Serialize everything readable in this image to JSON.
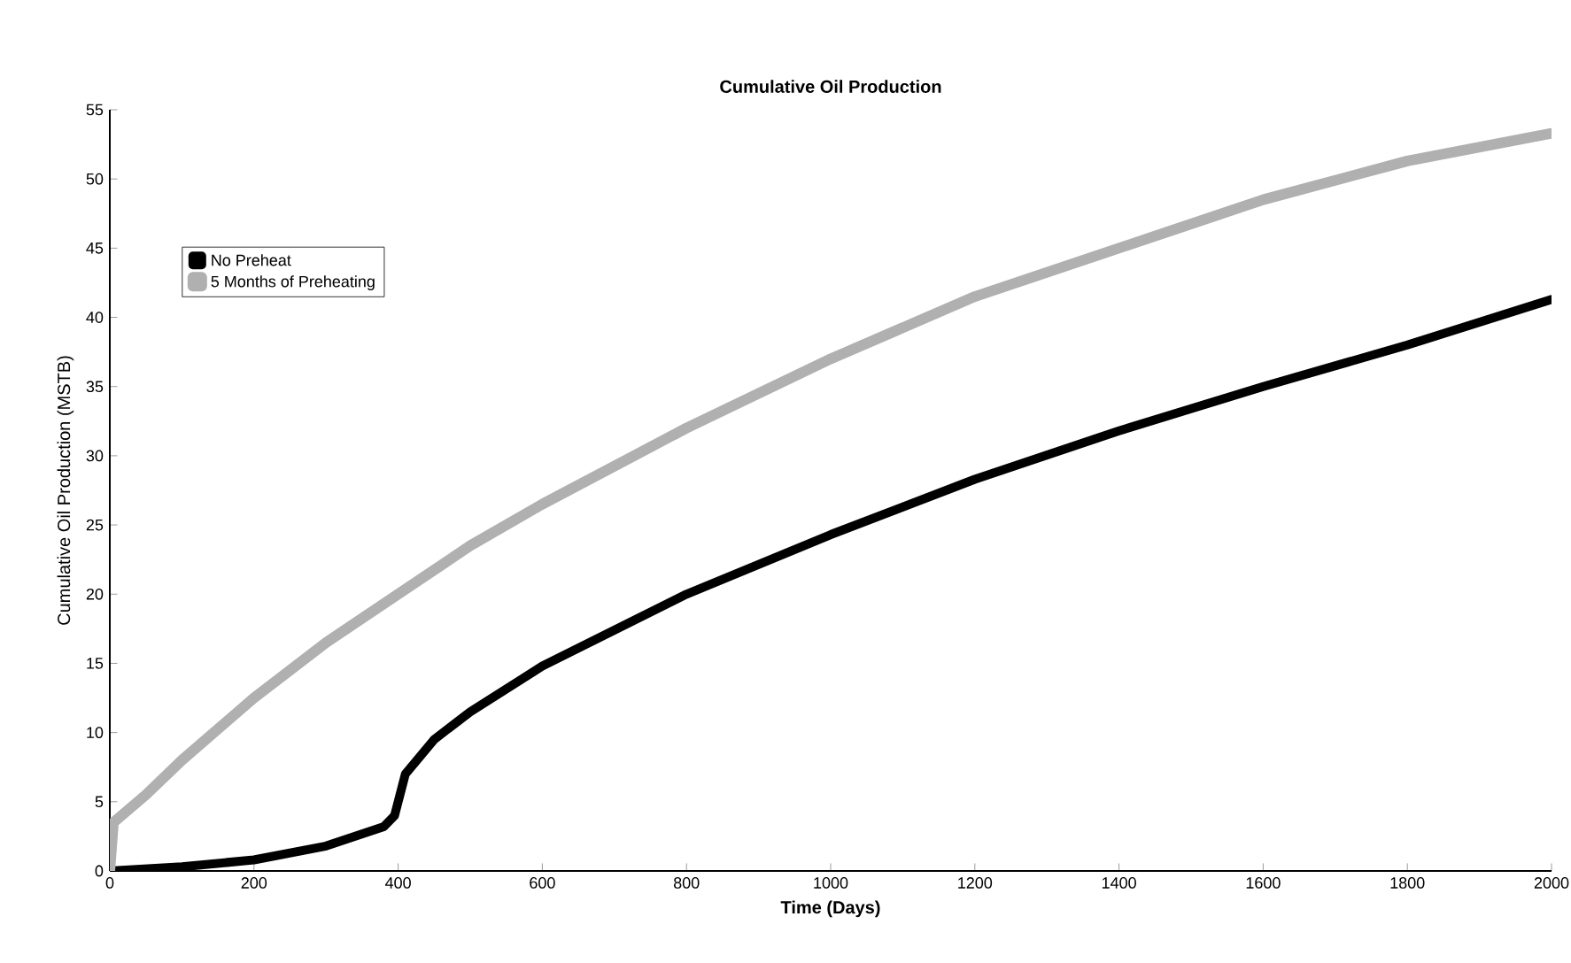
{
  "chart_data": {
    "type": "line",
    "title": "Cumulative Oil Production",
    "xlabel": "Time (Days)",
    "ylabel": "Cumulative Oil Production (MSTB)",
    "xlim": [
      0,
      2000
    ],
    "xticks": [
      0,
      200,
      400,
      600,
      800,
      1000,
      1200,
      1400,
      1600,
      1800,
      2000
    ],
    "ylim": [
      0,
      55
    ],
    "yticks": [
      0,
      5,
      10,
      15,
      20,
      25,
      30,
      35,
      40,
      45,
      50,
      55
    ],
    "legend": "top left",
    "grid": false,
    "marker": "none",
    "line_style": "solid",
    "series": [
      {
        "name": "No Preheat",
        "color": "#000000",
        "x": [
          0,
          100,
          200,
          300,
          380,
          395,
          410,
          450,
          500,
          600,
          800,
          1000,
          1200,
          1400,
          1600,
          1800,
          2000
        ],
        "values": [
          0,
          0.3,
          0.8,
          1.8,
          3.2,
          4,
          7,
          9.5,
          11.5,
          14.8,
          20,
          24.3,
          28.3,
          31.8,
          35,
          38,
          41.3
        ]
      },
      {
        "name": "5 Months of Preheating",
        "color": "#b0b0b0",
        "x": [
          0,
          5,
          50,
          100,
          200,
          300,
          400,
          500,
          600,
          800,
          1000,
          1200,
          1400,
          1600,
          1800,
          2000
        ],
        "values": [
          0,
          3.5,
          5.5,
          8,
          12.5,
          16.5,
          20,
          23.5,
          26.5,
          32,
          37,
          41.5,
          45,
          48.5,
          51.3,
          53.3
        ]
      }
    ]
  }
}
